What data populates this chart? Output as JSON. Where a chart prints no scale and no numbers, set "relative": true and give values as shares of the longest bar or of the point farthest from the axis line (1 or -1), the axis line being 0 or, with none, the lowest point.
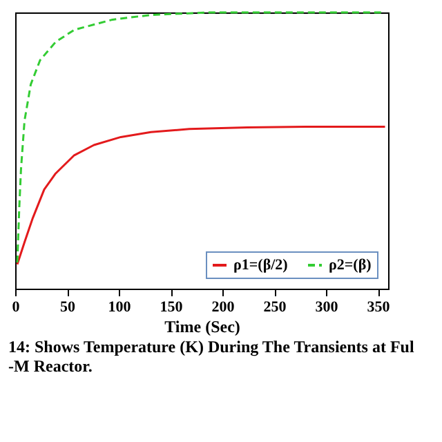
{
  "chart_data": {
    "type": "line",
    "xlabel": "Time (Sec)",
    "relative": true,
    "xlim": [
      0,
      360
    ],
    "xticks": [
      0,
      50,
      100,
      150,
      200,
      250,
      300,
      350
    ],
    "legend": "bottom right",
    "annotations": [
      "14: Shows Temperature (K) During The Transients at Ful",
      "-M Reactor."
    ],
    "x": [
      2,
      9,
      17,
      28,
      39,
      57,
      76,
      102,
      131,
      168,
      224,
      280,
      357
    ],
    "series": [
      {
        "name": "ρ1=(β/2)",
        "color": "#e31a1c",
        "line_style": "solid",
        "values": [
          0.088,
          0.168,
          0.256,
          0.359,
          0.417,
          0.483,
          0.52,
          0.549,
          0.567,
          0.578,
          0.584,
          0.586,
          0.586
        ]
      },
      {
        "name": "ρ2=(β)",
        "color": "#33cc33",
        "line_style": "dashed",
        "x": [
          2,
          4,
          5.6,
          9,
          15,
          24,
          39,
          57,
          94,
          131,
          187,
          250,
          357
        ],
        "values": [
          0.095,
          0.3,
          0.432,
          0.608,
          0.739,
          0.827,
          0.893,
          0.937,
          0.974,
          0.991,
          1,
          1,
          1
        ]
      }
    ]
  }
}
